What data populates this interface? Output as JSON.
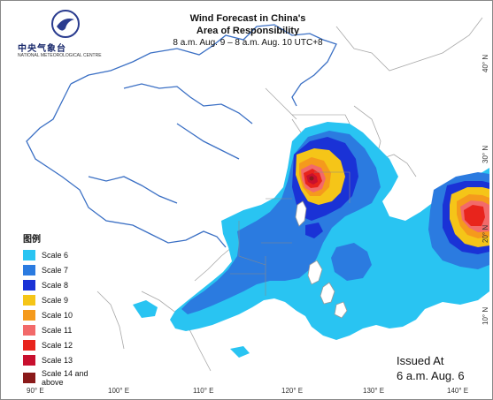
{
  "title": {
    "line1": "Wind Forecast in China's",
    "line2": "Area of Responsibility",
    "line3": "8 a.m. Aug. 9 – 8 a.m. Aug. 10 UTC+8"
  },
  "logo": {
    "cn": "中央气象台",
    "en": "NATIONAL METEOROLOGICAL CENTRE"
  },
  "legend": {
    "title": "图例",
    "items": [
      {
        "label": "Scale 6",
        "color": "#29c4f2"
      },
      {
        "label": "Scale 7",
        "color": "#2b7be0"
      },
      {
        "label": "Scale 8",
        "color": "#1a32d6"
      },
      {
        "label": "Scale 9",
        "color": "#f5c518"
      },
      {
        "label": "Scale 10",
        "color": "#f59a1c"
      },
      {
        "label": "Scale 11",
        "color": "#f26a6a"
      },
      {
        "label": "Scale 12",
        "color": "#e8241c"
      },
      {
        "label": "Scale 13",
        "color": "#c8102e"
      },
      {
        "label": "Scale 14 and above",
        "color": "#8a1a1a"
      }
    ]
  },
  "issued": {
    "line1": "Issued At",
    "line2": "6 a.m. Aug. 6"
  },
  "longitudes": [
    "90° E",
    "100° E",
    "110° E",
    "120° E",
    "130° E",
    "140° E"
  ],
  "latitudes": [
    "40° N",
    "30° N",
    "20° N",
    "10° N"
  ],
  "colors": {
    "border": "#3a6fc4",
    "land": "#ffffff",
    "coast": "#9a9a9a"
  }
}
